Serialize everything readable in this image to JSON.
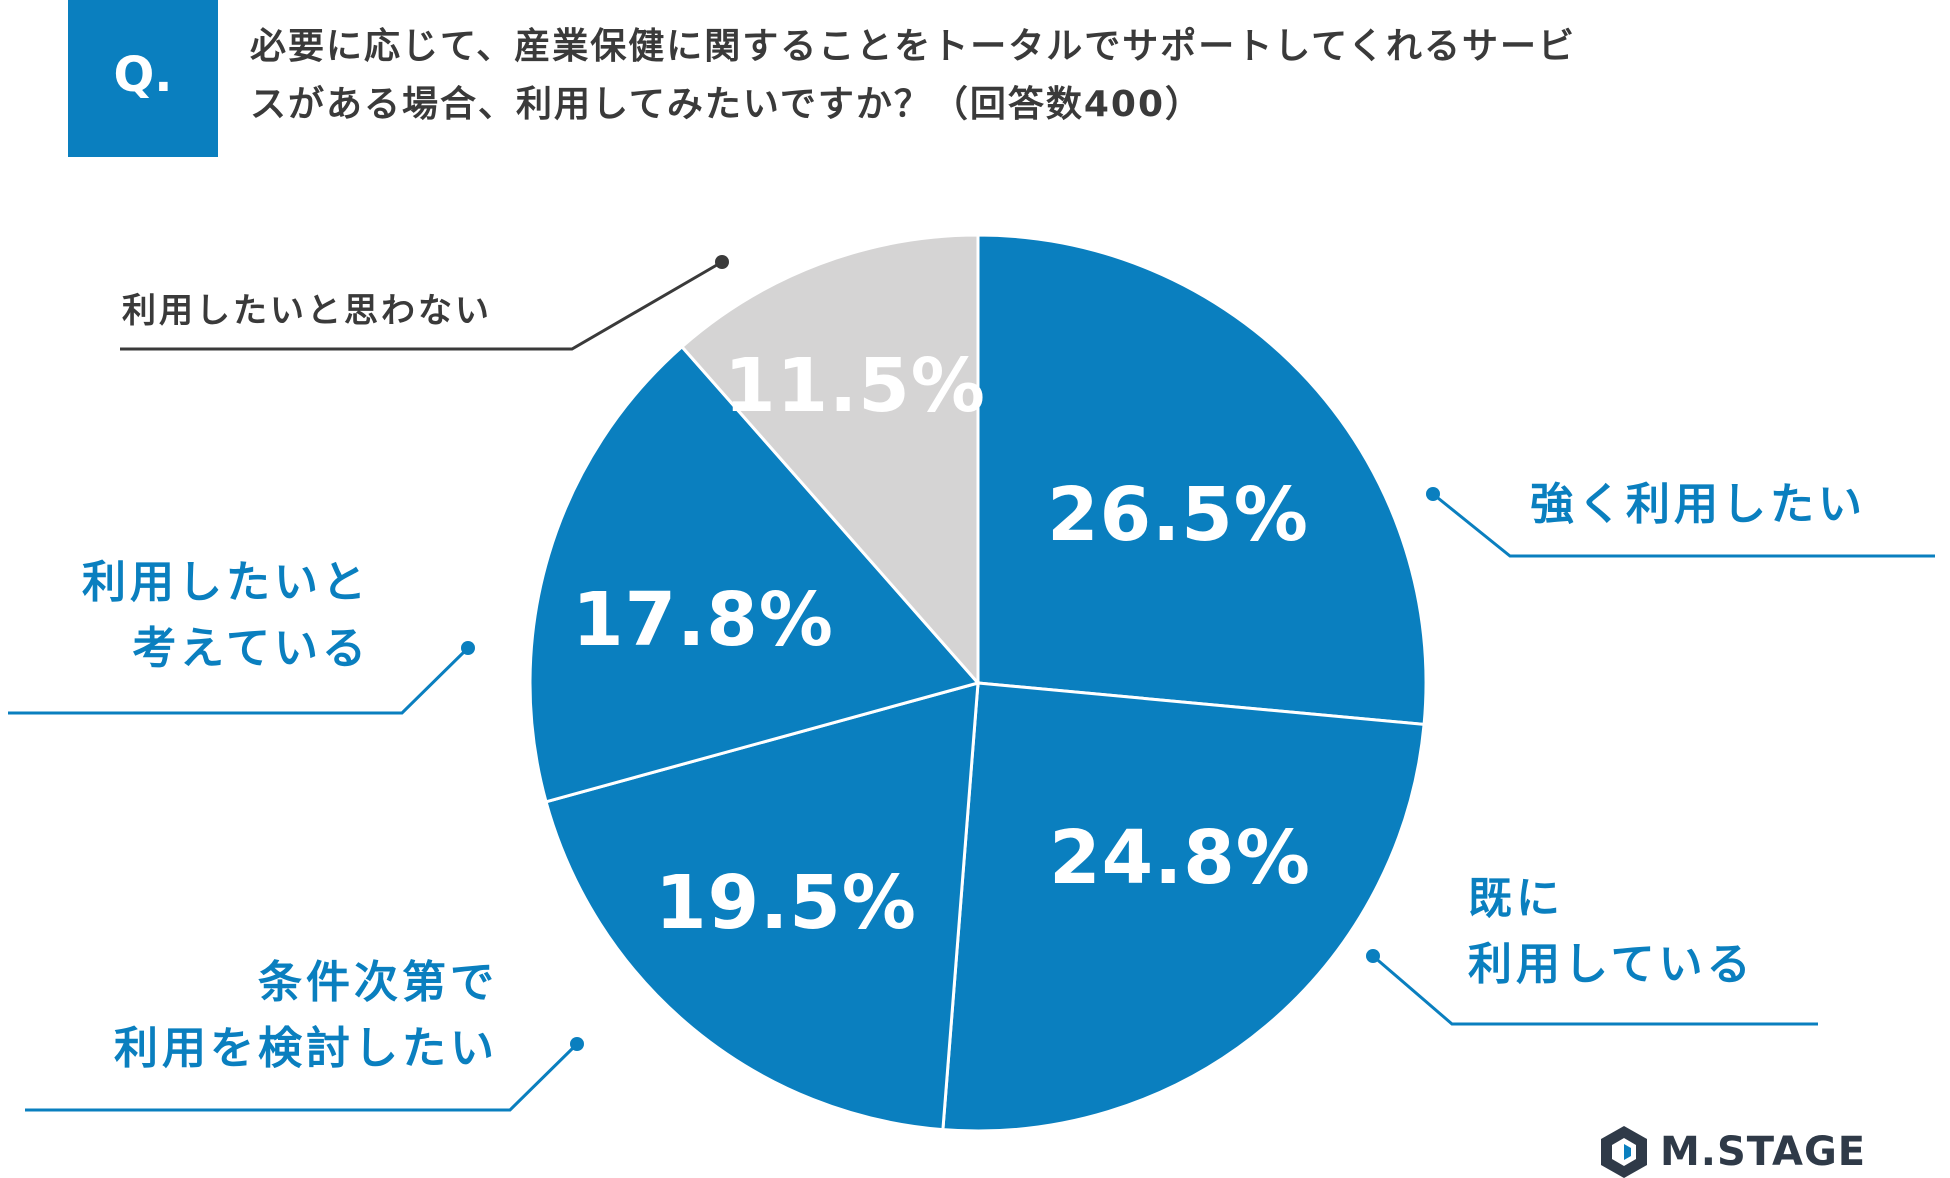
{
  "question": {
    "badge": "Q.",
    "line1": "必要に応じて、産業保健に関することをトータルでサポートしてくれるサービ",
    "line2": "スがある場合、利用してみたいですか？（回答数400）"
  },
  "chart_data": {
    "type": "pie",
    "title": "必要に応じて、産業保健に関することをトータルでサポートしてくれるサービスがある場合、利用してみたいですか？（回答数400）",
    "total_responses": 400,
    "slices": [
      {
        "label": "強く利用したい",
        "label_lines": [
          "強く利用したい"
        ],
        "value": 26.5,
        "display": "26.5%",
        "color": "#0a7fbf"
      },
      {
        "label": "既に利用している",
        "label_lines": [
          "既に",
          "利用している"
        ],
        "value": 24.8,
        "display": "24.8%",
        "color": "#0a7fbf"
      },
      {
        "label": "条件次第で利用を検討したい",
        "label_lines": [
          "条件次第で",
          "利用を検討したい"
        ],
        "value": 19.5,
        "display": "19.5%",
        "color": "#0a7fbf"
      },
      {
        "label": "利用したいと考えている",
        "label_lines": [
          "利用したいと",
          "考えている"
        ],
        "value": 17.8,
        "display": "17.8%",
        "color": "#0a7fbf"
      },
      {
        "label": "利用したいと思わない",
        "label_lines": [
          "利用したいと思わない"
        ],
        "value": 11.5,
        "display": "11.5%",
        "color": "#d5d4d4"
      }
    ],
    "start_angle": "12 o'clock",
    "direction": "clockwise"
  },
  "brand": {
    "name": "M.STAGE",
    "color": "#2f3a48"
  },
  "colors": {
    "accent": "#0a7fbf",
    "neutral": "#d5d4d4",
    "text": "#3a3a3a"
  }
}
